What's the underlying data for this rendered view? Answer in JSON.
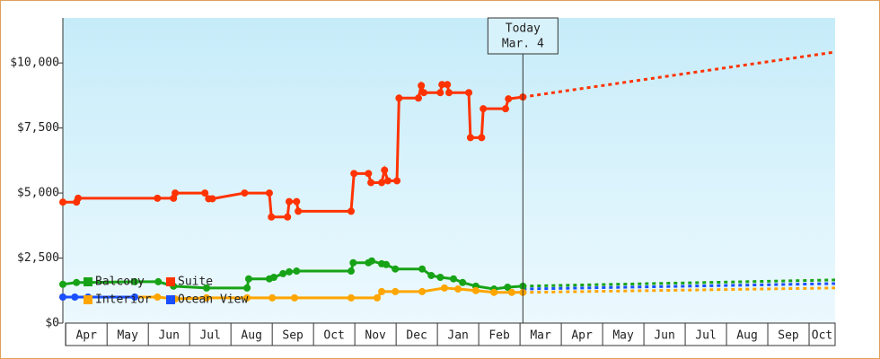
{
  "chart_data": {
    "type": "line",
    "categories": [
      "Apr",
      "May",
      "Jun",
      "Jul",
      "Aug",
      "Sep",
      "Oct",
      "Nov",
      "Dec",
      "Jan",
      "Feb",
      "Mar",
      "Apr",
      "May",
      "Jun",
      "Jul",
      "Aug",
      "Sep",
      "Oct"
    ],
    "xlim": [
      -0.07,
      18.63
    ],
    "xticks": [
      0,
      1,
      2,
      3,
      4,
      5,
      6,
      7,
      8,
      9,
      10,
      11,
      12,
      13,
      14,
      15,
      16,
      17,
      18
    ],
    "ylim": [
      0,
      11730
    ],
    "yticks": [
      {
        "value": 0,
        "label": "$0"
      },
      {
        "value": 2500,
        "label": "$2,500"
      },
      {
        "value": 5000,
        "label": "$5,000"
      },
      {
        "value": 7500,
        "label": "$7,500"
      },
      {
        "value": 10000,
        "label": "$10,000"
      }
    ],
    "today": {
      "x": 11.07,
      "label": "Today",
      "date": "Mar. 4"
    },
    "legend": "lower left",
    "series": [
      {
        "name": "Balcony",
        "color": "#17a317",
        "x": [
          -0.07,
          0.26,
          0.54,
          1.67,
          2.24,
          2.61,
          3.41,
          4.39,
          4.43,
          4.93,
          5.04,
          5.26,
          5.41,
          5.59,
          6.91,
          6.96,
          7.33,
          7.41,
          7.65,
          7.76,
          7.98,
          8.63,
          8.85,
          9.07,
          9.39,
          9.61,
          9.93,
          10.37,
          10.7,
          11.07
        ],
        "values": [
          1490,
          1560,
          1560,
          1590,
          1590,
          1420,
          1350,
          1350,
          1700,
          1700,
          1760,
          1900,
          1970,
          2000,
          2000,
          2320,
          2320,
          2390,
          2280,
          2250,
          2080,
          2080,
          1830,
          1760,
          1700,
          1560,
          1420,
          1310,
          1380,
          1420
        ],
        "forecast": {
          "x": [
            11.07,
            18.63
          ],
          "values": [
            1420,
            1660
          ]
        }
      },
      {
        "name": "Suite",
        "color": "#ff3300",
        "x": [
          -0.07,
          0.26,
          0.3,
          2.22,
          2.61,
          2.65,
          3.37,
          3.46,
          3.55,
          4.33,
          4.93,
          4.98,
          5.37,
          5.41,
          5.59,
          5.63,
          6.91,
          6.98,
          7.33,
          7.39,
          7.65,
          7.72,
          7.8,
          8.02,
          8.07,
          8.54,
          8.61,
          8.67,
          9.07,
          9.11,
          9.24,
          9.28,
          9.76,
          9.8,
          10.07,
          10.11,
          10.65,
          10.72,
          11.07
        ],
        "values": [
          4650,
          4650,
          4800,
          4800,
          4800,
          5000,
          5000,
          4780,
          4780,
          5000,
          5000,
          4080,
          4080,
          4670,
          4670,
          4300,
          4300,
          5750,
          5750,
          5400,
          5400,
          5880,
          5470,
          5470,
          8650,
          8650,
          9130,
          8860,
          8860,
          9170,
          9170,
          8860,
          8860,
          7130,
          7130,
          8240,
          8240,
          8620,
          8690
        ],
        "forecast": {
          "x": [
            11.07,
            18.63
          ],
          "values": [
            8690,
            10420
          ]
        }
      },
      {
        "name": "Interior",
        "color": "#ffa500",
        "x": [
          -0.07,
          2.22,
          2.65,
          3.41,
          4.39,
          5.0,
          5.54,
          6.91,
          7.54,
          7.65,
          7.98,
          8.63,
          9.17,
          9.5,
          9.93,
          10.37,
          10.8,
          11.07
        ],
        "values": [
          1000,
          1000,
          930,
          970,
          970,
          970,
          970,
          970,
          970,
          1210,
          1210,
          1210,
          1350,
          1310,
          1250,
          1180,
          1180,
          1180
        ],
        "forecast": {
          "x": [
            11.07,
            18.63
          ],
          "values": [
            1180,
            1350
          ]
        }
      },
      {
        "name": "Ocean View",
        "color": "#1a4fff",
        "x": [
          -0.07,
          0.22,
          0.54,
          1.67
        ],
        "values": [
          1000,
          1000,
          1000,
          1000
        ],
        "forecast": {
          "x": [
            11.07,
            18.63
          ],
          "values": [
            1310,
            1520
          ]
        }
      }
    ]
  }
}
